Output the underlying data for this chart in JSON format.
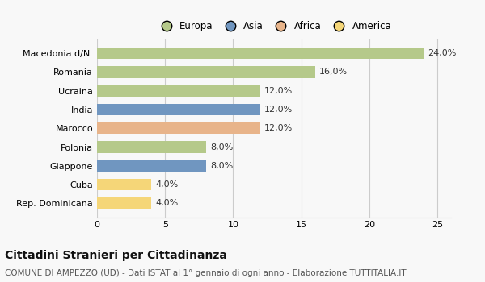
{
  "categories": [
    "Macedonia d/N.",
    "Romania",
    "Ucraina",
    "India",
    "Marocco",
    "Polonia",
    "Giappone",
    "Cuba",
    "Rep. Dominicana"
  ],
  "values": [
    24.0,
    16.0,
    12.0,
    12.0,
    12.0,
    8.0,
    8.0,
    4.0,
    4.0
  ],
  "colors": [
    "#b5c98a",
    "#b5c98a",
    "#b5c98a",
    "#7096c0",
    "#e8b48a",
    "#b5c98a",
    "#7096c0",
    "#f5d678",
    "#f5d678"
  ],
  "legend": [
    {
      "label": "Europa",
      "color": "#b5c98a"
    },
    {
      "label": "Asia",
      "color": "#7096c0"
    },
    {
      "label": "Africa",
      "color": "#e8b48a"
    },
    {
      "label": "America",
      "color": "#f5d678"
    }
  ],
  "xlim": [
    0,
    26
  ],
  "xticks": [
    0,
    5,
    10,
    15,
    20,
    25
  ],
  "title": "Cittadini Stranieri per Cittadinanza",
  "subtitle": "COMUNE DI AMPEZZO (UD) - Dati ISTAT al 1° gennaio di ogni anno - Elaborazione TUTTITALIA.IT",
  "background_color": "#f8f8f8",
  "bar_height": 0.62,
  "grid_color": "#cccccc",
  "title_fontsize": 10,
  "subtitle_fontsize": 7.5,
  "tick_fontsize": 8,
  "label_fontsize": 8,
  "legend_fontsize": 8.5
}
